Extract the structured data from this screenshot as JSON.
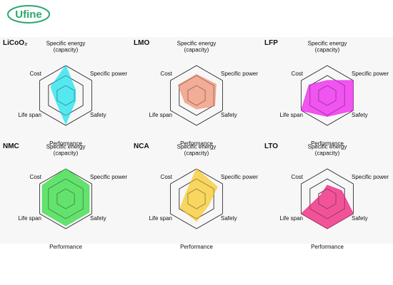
{
  "brand": {
    "logo_text": "Ufine",
    "logo_color": "#2aa86a"
  },
  "axes": [
    "Specific energy\n(capacity)",
    "Specific power",
    "Safety",
    "Performance",
    "Life span",
    "Cost"
  ],
  "chart_data": [
    {
      "type": "radar",
      "title": "LiCoO₂",
      "color": "#3fe6f0",
      "axes": [
        "Specific energy (capacity)",
        "Specific power",
        "Safety",
        "Performance",
        "Life span",
        "Cost"
      ],
      "values": [
        4,
        1.5,
        1.5,
        3.8,
        1.5,
        2.3
      ],
      "scale_max": 4
    },
    {
      "type": "radar",
      "title": "LMO",
      "color": "#f2a288",
      "axes": [
        "Specific energy (capacity)",
        "Specific power",
        "Safety",
        "Performance",
        "Life span",
        "Cost"
      ],
      "values": [
        2.8,
        3,
        2.8,
        1.8,
        1.8,
        2.8
      ],
      "scale_max": 4
    },
    {
      "type": "radar",
      "title": "LFP",
      "color": "#f03ef0",
      "axes": [
        "Specific energy (capacity)",
        "Specific power",
        "Safety",
        "Performance",
        "Life span",
        "Cost"
      ],
      "values": [
        2,
        4,
        4,
        2.8,
        4,
        2.8
      ],
      "scale_max": 4
    },
    {
      "type": "radar",
      "title": "NMC",
      "color": "#4ee05a",
      "axes": [
        "Specific energy (capacity)",
        "Specific power",
        "Safety",
        "Performance",
        "Life span",
        "Cost"
      ],
      "values": [
        4,
        3.6,
        3.6,
        3.6,
        3.6,
        3.6
      ],
      "scale_max": 4
    },
    {
      "type": "radar",
      "title": "NCA",
      "color": "#f8d24a",
      "axes": [
        "Specific energy (capacity)",
        "Specific power",
        "Safety",
        "Performance",
        "Life span",
        "Cost"
      ],
      "values": [
        4,
        3.2,
        1.8,
        3,
        2.5,
        1.6
      ],
      "scale_max": 4
    },
    {
      "type": "radar",
      "title": "LTO",
      "color": "#f03c8c",
      "axes": [
        "Specific energy (capacity)",
        "Specific power",
        "Safety",
        "Performance",
        "Life span",
        "Cost"
      ],
      "values": [
        1.8,
        2.2,
        4,
        4,
        4,
        1
      ],
      "scale_max": 4
    }
  ]
}
